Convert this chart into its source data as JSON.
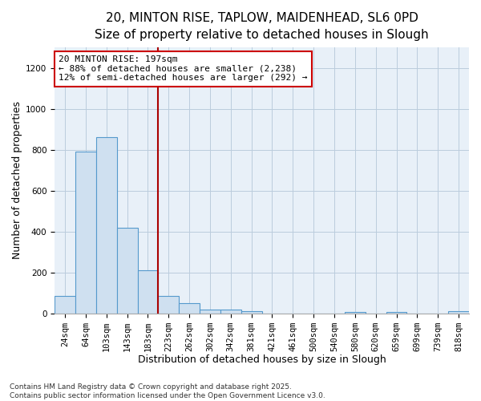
{
  "title_line1": "20, MINTON RISE, TAPLOW, MAIDENHEAD, SL6 0PD",
  "title_line2": "Size of property relative to detached houses in Slough",
  "xlabel": "Distribution of detached houses by size in Slough",
  "ylabel": "Number of detached properties",
  "bar_values": [
    85,
    790,
    860,
    420,
    210,
    85,
    50,
    20,
    20,
    10,
    0,
    0,
    0,
    0,
    5,
    0,
    5,
    0,
    0,
    10
  ],
  "bar_labels": [
    "24sqm",
    "64sqm",
    "103sqm",
    "143sqm",
    "183sqm",
    "223sqm",
    "262sqm",
    "302sqm",
    "342sqm",
    "381sqm",
    "421sqm",
    "461sqm",
    "500sqm",
    "540sqm",
    "580sqm",
    "620sqm",
    "659sqm",
    "699sqm",
    "739sqm",
    "818sqm"
  ],
  "bar_color": "#cfe0f0",
  "bar_edge_color": "#5599cc",
  "red_line_index": 4,
  "annotation_line1": "20 MINTON RISE: 197sqm",
  "annotation_line2": "← 88% of detached houses are smaller (2,238)",
  "annotation_line3": "12% of semi-detached houses are larger (292) →",
  "annotation_box_color": "#ffffff",
  "annotation_box_edge": "#cc0000",
  "ylim": [
    0,
    1300
  ],
  "yticks": [
    0,
    200,
    400,
    600,
    800,
    1000,
    1200
  ],
  "grid_color": "#bbccdd",
  "plot_bg_color": "#e8f0f8",
  "fig_bg_color": "#ffffff",
  "footnote_line1": "Contains HM Land Registry data © Crown copyright and database right 2025.",
  "footnote_line2": "Contains public sector information licensed under the Open Government Licence v3.0.",
  "title_fontsize": 11,
  "subtitle_fontsize": 10,
  "tick_fontsize": 7.5,
  "xlabel_fontsize": 9,
  "ylabel_fontsize": 9,
  "annotation_fontsize": 8,
  "footnote_fontsize": 6.5
}
